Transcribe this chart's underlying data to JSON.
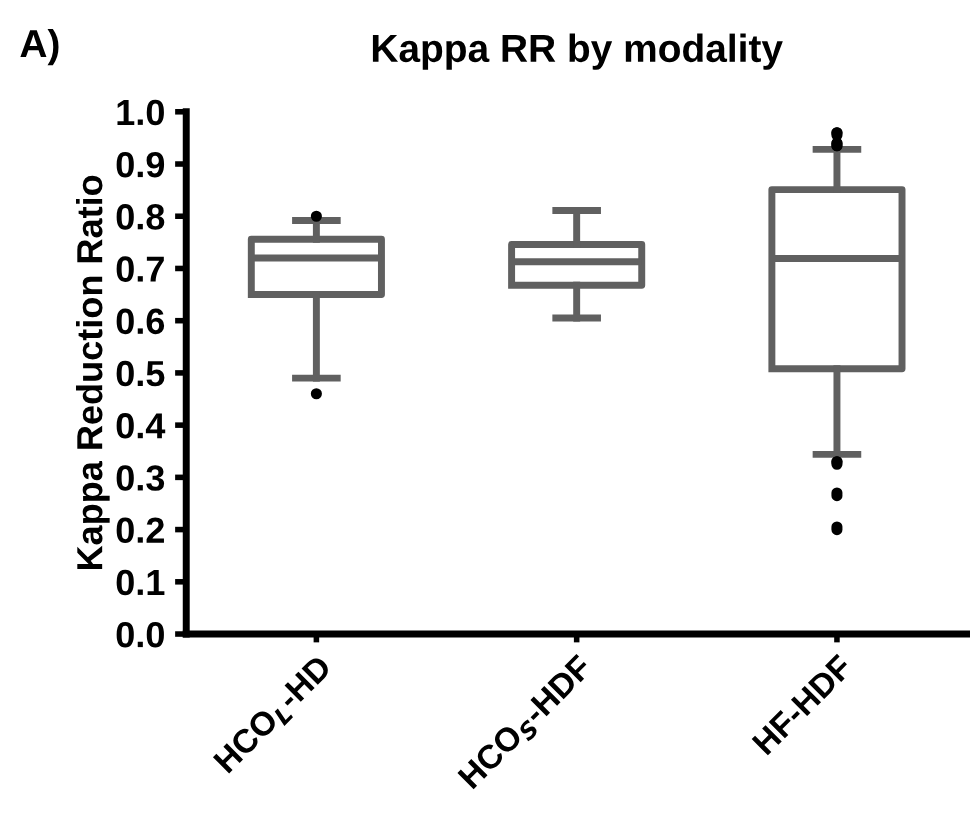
{
  "chart_data": {
    "type": "box",
    "title": "Kappa RR by modality",
    "ylabel": "Kappa Reduction Ratio",
    "annotations": [
      "A)"
    ],
    "categories": [
      "HCO$_{L}$-HD",
      "HCO$_{S}$-HDF",
      "HF-HDF"
    ],
    "boxes": [
      {
        "low": 0.49,
        "q1": 0.65,
        "median": 0.72,
        "q3": 0.756,
        "high": 0.792,
        "outliers": [
          0.8,
          0.46
        ]
      },
      {
        "low": 0.605,
        "q1": 0.668,
        "median": 0.713,
        "q3": 0.746,
        "high": 0.811
      },
      {
        "low": 0.344,
        "q1": 0.508,
        "median": 0.719,
        "q3": 0.851,
        "high": 0.928,
        "outliers": [
          0.96,
          0.955,
          0.96,
          0.94,
          0.935,
          0.94,
          0.935,
          0.33,
          0.325,
          0.33,
          0.27,
          0.265,
          0.2,
          0.205
        ]
      }
    ],
    "color": "#606060",
    "ylim": [
      0.0,
      1.0
    ],
    "yticks": [
      {
        "value": 0.0,
        "label": "0.0"
      },
      {
        "value": 0.1,
        "label": "0.1"
      },
      {
        "value": 0.2,
        "label": "0.2"
      },
      {
        "value": 0.3,
        "label": "0.3"
      },
      {
        "value": 0.4,
        "label": "0.4"
      },
      {
        "value": 0.5,
        "label": "0.5"
      },
      {
        "value": 0.6,
        "label": "0.6"
      },
      {
        "value": 0.7,
        "label": "0.7"
      },
      {
        "value": 0.8,
        "label": "0.8"
      },
      {
        "value": 0.9,
        "label": "0.9"
      },
      {
        "value": 1.0,
        "label": "1.0"
      }
    ],
    "grid": false
  }
}
